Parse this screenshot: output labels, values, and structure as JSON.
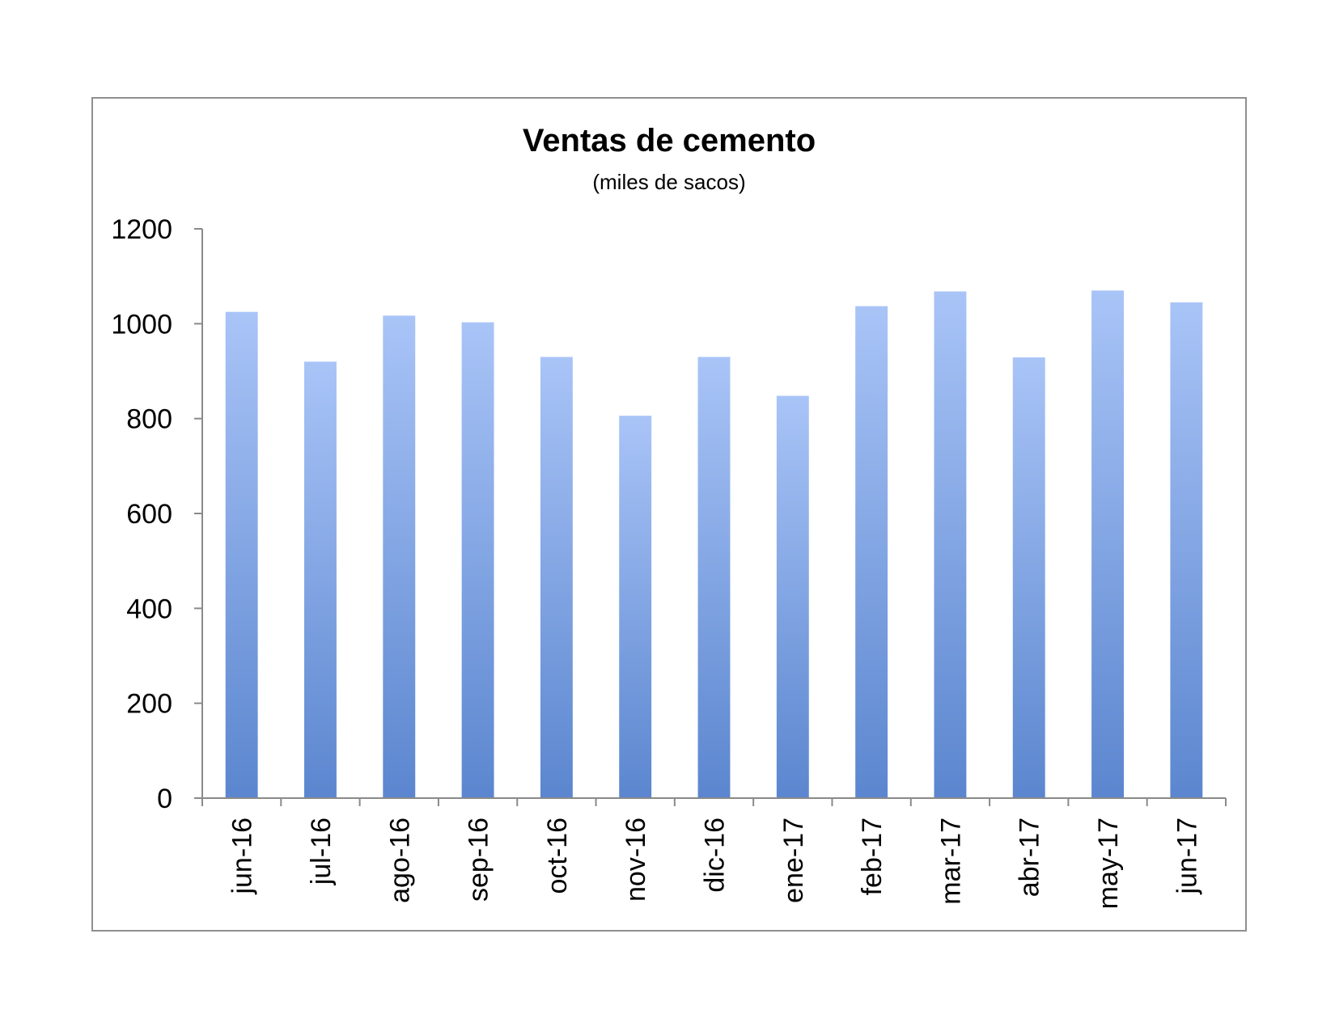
{
  "chart_data": {
    "type": "bar",
    "title": "Ventas de cemento",
    "subtitle": "(miles de sacos)",
    "xlabel": "",
    "ylabel": "",
    "categories": [
      "jun-16",
      "jul-16",
      "ago-16",
      "sep-16",
      "oct-16",
      "nov-16",
      "dic-16",
      "ene-17",
      "feb-17",
      "mar-17",
      "abr-17",
      "may-17",
      "jun-17"
    ],
    "values": [
      1025,
      920,
      1017,
      1003,
      930,
      806,
      930,
      848,
      1037,
      1068,
      929,
      1070,
      1045
    ],
    "ylim": [
      0,
      1200
    ],
    "yticks": [
      0,
      200,
      400,
      600,
      800,
      1000,
      1200
    ],
    "grid": false,
    "legend": "none",
    "colors": {
      "bar_top": "#a9c4f7",
      "bar_bottom": "#5b86cf",
      "axis": "#8a8a8a",
      "frame": "#8f8f8f"
    }
  }
}
